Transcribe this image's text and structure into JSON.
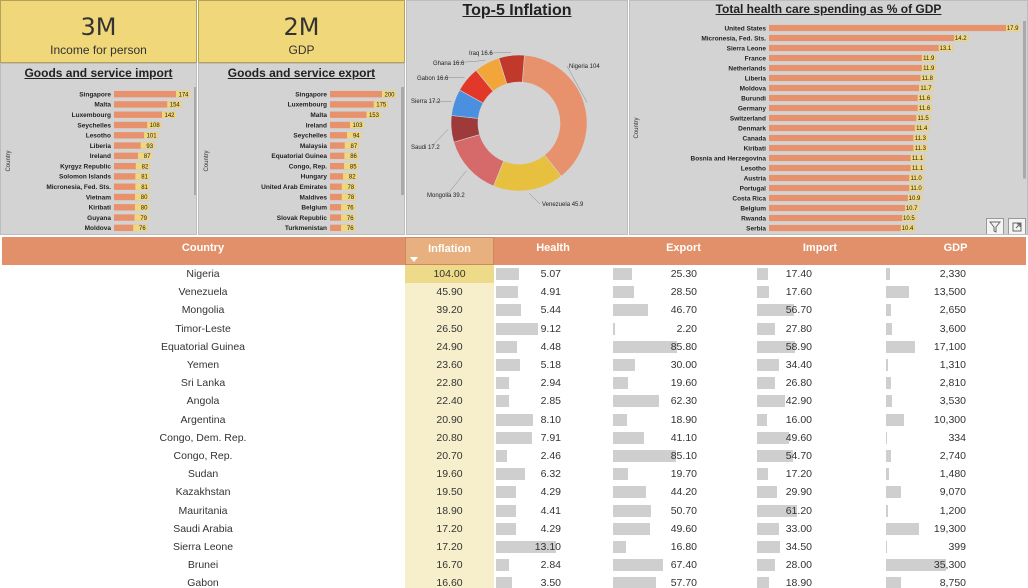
{
  "kpis": [
    {
      "value": "3M",
      "label": "Income for person"
    },
    {
      "value": "2M",
      "label": "GDP"
    }
  ],
  "chart_data": [
    {
      "type": "bar",
      "title": "Goods and service import",
      "ylabel": "Country",
      "categories": [
        "Singapore",
        "Malta",
        "Luxembourg",
        "Seychelles",
        "Lesotho",
        "Liberia",
        "Ireland",
        "Kyrgyz Republic",
        "Solomon Islands",
        "Micronesia, Fed. Sts.",
        "Vietnam",
        "Kiribati",
        "Guyana",
        "Moldova"
      ],
      "values": [
        174,
        154,
        142,
        108,
        101,
        93,
        87,
        82,
        81,
        81,
        80,
        80,
        79,
        76
      ],
      "bar_color": "#e8916d",
      "label_color": "#f0d77a"
    },
    {
      "type": "bar",
      "title": "Goods and service export",
      "ylabel": "Country",
      "categories": [
        "Singapore",
        "Luxembourg",
        "Malta",
        "Ireland",
        "Seychelles",
        "Malaysia",
        "Equatorial Guinea",
        "Congo, Rep.",
        "Hungary",
        "United Arab Emirates",
        "Maldives",
        "Belgium",
        "Slovak Republic",
        "Turkmenistan"
      ],
      "values": [
        200,
        175,
        153,
        103,
        94,
        87,
        86,
        85,
        82,
        78,
        78,
        76,
        76,
        76
      ],
      "bar_color": "#e8916d",
      "label_color": "#f0d77a"
    },
    {
      "type": "pie",
      "title": "Top-5 Inflation",
      "categories": [
        "Nigeria",
        "Venezuela",
        "Mongolia",
        "Saudi",
        "Sierra",
        "Gabon",
        "Ghana",
        "Iraq"
      ],
      "values": [
        104,
        45.9,
        39.2,
        17.2,
        17.2,
        16.6,
        16.6,
        16.6
      ],
      "label_texts": [
        "Nigeria 104",
        "Venezuela 45.9",
        "Mongolia 39.2",
        "Saudi 17.2",
        "Sierra 17.2",
        "Gabon 16.6",
        "Ghana 16.6",
        "Iraq 16.6"
      ],
      "colors": [
        "#e8916d",
        "#e8c03f",
        "#d66a6a",
        "#9e3a3a",
        "#4a8fe0",
        "#e2382a",
        "#f2a63a",
        "#c0392b"
      ]
    },
    {
      "type": "bar",
      "title": "Total health care spending as % of GDP",
      "ylabel": "Country",
      "categories": [
        "United States",
        "Micronesia, Fed. Sts.",
        "Sierra Leone",
        "France",
        "Netherlands",
        "Liberia",
        "Moldova",
        "Burundi",
        "Germany",
        "Switzerland",
        "Denmark",
        "Canada",
        "Kiribati",
        "Bosnia and Herzegovina",
        "Lesotho",
        "Austria",
        "Portugal",
        "Costa Rica",
        "Belgium",
        "Rwanda",
        "Serbia"
      ],
      "values": [
        17.9,
        14.2,
        13.1,
        11.9,
        11.9,
        11.8,
        11.7,
        11.6,
        11.6,
        11.5,
        11.4,
        11.3,
        11.3,
        11.1,
        11.1,
        11.0,
        11.0,
        10.9,
        10.7,
        10.5,
        10.4
      ],
      "value_labels": [
        "17.9",
        "14.2",
        "13.1",
        "11.9",
        "11.9",
        "11.8",
        "11.7",
        "11.6",
        "11.6",
        "11.5",
        "11.4",
        "11.3",
        "11.3",
        "11.1",
        "11.1",
        "11.0",
        "11.0",
        "10.9",
        "10.7",
        "10.5",
        "10.4"
      ],
      "bar_color": "#e8916d",
      "label_color": "#f0d77a"
    },
    {
      "type": "table",
      "columns": [
        "Country",
        "Inflation",
        "Health",
        "Export",
        "Import",
        "GDP"
      ],
      "sorted_by": "Inflation",
      "rows": [
        [
          "Nigeria",
          "104.00",
          "5.07",
          "25.30",
          "17.40",
          "2,330"
        ],
        [
          "Venezuela",
          "45.90",
          "4.91",
          "28.50",
          "17.60",
          "13,500"
        ],
        [
          "Mongolia",
          "39.20",
          "5.44",
          "46.70",
          "56.70",
          "2,650"
        ],
        [
          "Timor-Leste",
          "26.50",
          "9.12",
          "2.20",
          "27.80",
          "3,600"
        ],
        [
          "Equatorial Guinea",
          "24.90",
          "4.48",
          "85.80",
          "58.90",
          "17,100"
        ],
        [
          "Yemen",
          "23.60",
          "5.18",
          "30.00",
          "34.40",
          "1,310"
        ],
        [
          "Sri Lanka",
          "22.80",
          "2.94",
          "19.60",
          "26.80",
          "2,810"
        ],
        [
          "Angola",
          "22.40",
          "2.85",
          "62.30",
          "42.90",
          "3,530"
        ],
        [
          "Argentina",
          "20.90",
          "8.10",
          "18.90",
          "16.00",
          "10,300"
        ],
        [
          "Congo, Dem. Rep.",
          "20.80",
          "7.91",
          "41.10",
          "49.60",
          "334"
        ],
        [
          "Congo, Rep.",
          "20.70",
          "2.46",
          "85.10",
          "54.70",
          "2,740"
        ],
        [
          "Sudan",
          "19.60",
          "6.32",
          "19.70",
          "17.20",
          "1,480"
        ],
        [
          "Kazakhstan",
          "19.50",
          "4.29",
          "44.20",
          "29.90",
          "9,070"
        ],
        [
          "Mauritania",
          "18.90",
          "4.41",
          "50.70",
          "61.20",
          "1,200"
        ],
        [
          "Saudi Arabia",
          "17.20",
          "4.29",
          "49.60",
          "33.00",
          "19,300"
        ],
        [
          "Sierra Leone",
          "17.20",
          "13.10",
          "16.80",
          "34.50",
          "399"
        ],
        [
          "Brunei",
          "16.70",
          "2.84",
          "67.40",
          "28.00",
          "35,300"
        ],
        [
          "Gabon",
          "16.60",
          "3.50",
          "57.70",
          "18.90",
          "8,750"
        ]
      ],
      "bar_max": {
        "Health": 17.9,
        "Export": 200,
        "Import": 174,
        "GDP": 100000
      }
    }
  ],
  "controls": {
    "filter_icon": "filter-icon",
    "focus_icon": "focus-mode-icon"
  }
}
